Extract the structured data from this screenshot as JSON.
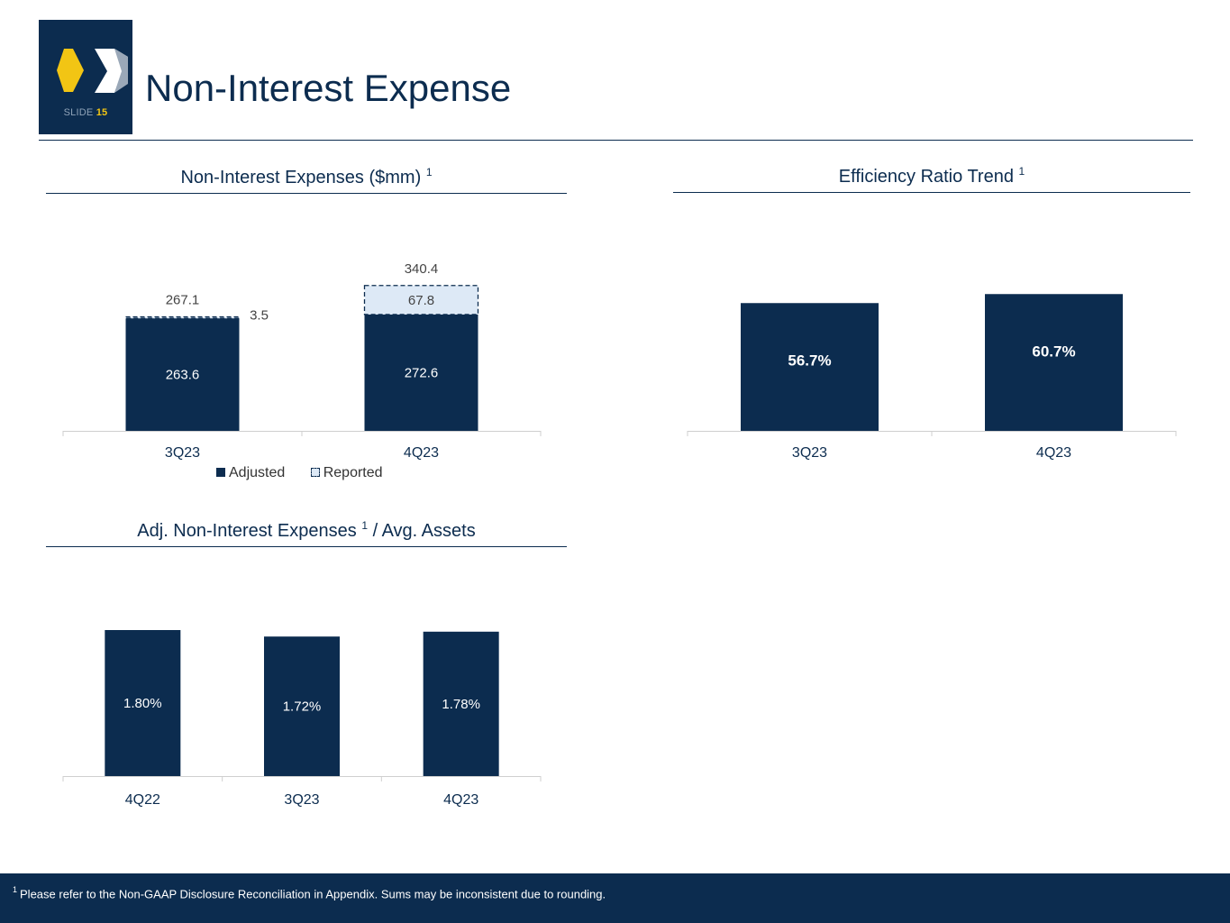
{
  "slide": {
    "label": "SLIDE",
    "number": "15",
    "title": "Non-Interest Expense",
    "colors": {
      "navy": "#0c2c4f",
      "light_blue": "#dde9f6",
      "yellow": "#f2c514"
    }
  },
  "panels": {
    "expenses": {
      "title": "Non-Interest Expenses ($mm)",
      "footnote_ref": "1"
    },
    "efficiency": {
      "title": "Efficiency Ratio Trend",
      "footnote_ref": "1"
    },
    "assets": {
      "title_part1": "Adj. Non-Interest Expenses",
      "footnote_ref": "1",
      "title_part2": "/ Avg. Assets"
    }
  },
  "legend": {
    "adjusted": "Adjusted",
    "reported": "Reported"
  },
  "footer": {
    "footnote_marker": "1",
    "footnote": "Please refer to the Non-GAAP Disclosure Reconciliation in Appendix. Sums may be inconsistent due to rounding."
  },
  "chart_data": [
    {
      "type": "bar",
      "stacked": true,
      "title": "Non-Interest Expenses ($mm)",
      "categories": [
        "3Q23",
        "4Q23"
      ],
      "series": [
        {
          "name": "Adjusted",
          "values": [
            263.6,
            272.6
          ],
          "labels": [
            "263.6",
            "272.6"
          ]
        },
        {
          "name": "Reported",
          "values": [
            3.5,
            67.8
          ],
          "labels": [
            "3.5",
            "67.8"
          ]
        }
      ],
      "totals": [
        267.1,
        340.4
      ],
      "total_labels": [
        "267.1",
        "340.4"
      ],
      "ylim": [
        0,
        380
      ]
    },
    {
      "type": "bar",
      "title": "Efficiency Ratio Trend",
      "categories": [
        "3Q23",
        "4Q23"
      ],
      "values": [
        56.7,
        60.7
      ],
      "labels": [
        "56.7%",
        "60.7%"
      ],
      "ylim": [
        0,
        70
      ]
    },
    {
      "type": "bar",
      "title": "Adj. Non-Interest Expenses / Avg. Assets",
      "categories": [
        "4Q22",
        "3Q23",
        "4Q23"
      ],
      "values": [
        1.8,
        1.72,
        1.78
      ],
      "labels": [
        "1.80%",
        "1.72%",
        "1.78%"
      ],
      "ylim": [
        0,
        2.0
      ]
    }
  ]
}
